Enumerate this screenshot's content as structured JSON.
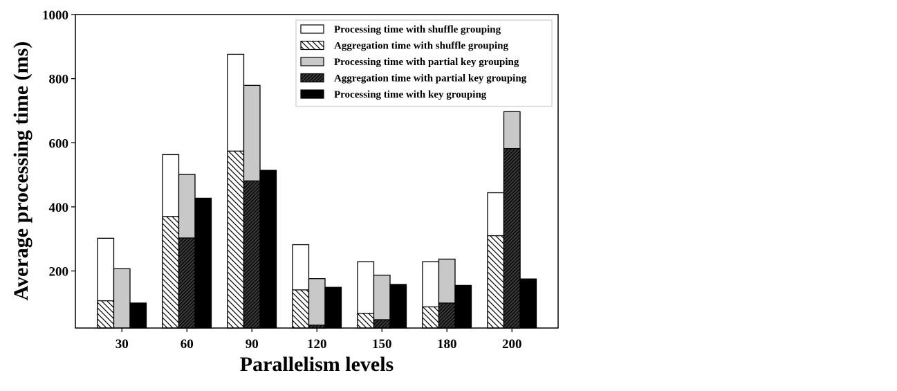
{
  "chart_data": {
    "type": "bar",
    "xlabel": "Parallelism levels",
    "ylabel": "Average processing time (ms)",
    "ylim": [
      22,
      1000
    ],
    "yticks": [
      200,
      400,
      600,
      800,
      1000
    ],
    "grid": false,
    "legend_placement": "top-right",
    "categories": [
      "30",
      "60",
      "90",
      "120",
      "150",
      "180",
      "200"
    ],
    "series": [
      {
        "name": "Processing time with shuffle grouping",
        "pattern": "white",
        "values": [
          302,
          563,
          876,
          282,
          229,
          229,
          444
        ]
      },
      {
        "name": "Aggregation time with shuffle grouping",
        "pattern": "hatch-light",
        "values": [
          107,
          370,
          574,
          141,
          68,
          88,
          310
        ]
      },
      {
        "name": "Processing time with partial key grouping",
        "pattern": "gray",
        "values": [
          207,
          501,
          779,
          176,
          187,
          237,
          697
        ]
      },
      {
        "name": "Aggregation time with partial key grouping",
        "pattern": "hatch-dense",
        "values": [
          0,
          303,
          481,
          31,
          48,
          100,
          582
        ]
      },
      {
        "name": "Processing time with key grouping",
        "pattern": "black",
        "values": [
          100,
          427,
          514,
          149,
          158,
          155,
          175
        ]
      }
    ],
    "colors": {
      "white": "#ffffff",
      "gray": "#c8c8c8",
      "black": "#000000",
      "edge": "#000000"
    }
  }
}
